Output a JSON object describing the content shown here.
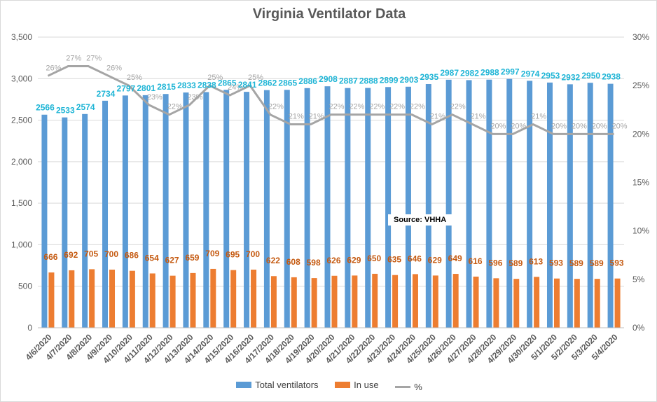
{
  "chart_data": {
    "type": "bar",
    "title": "Virginia Ventilator Data",
    "categories": [
      "4/6/2020",
      "4/7/2020",
      "4/8/2020",
      "4/9/2020",
      "4/10/2020",
      "4/11/2020",
      "4/12/2020",
      "4/13/2020",
      "4/14/2020",
      "4/15/2020",
      "4/16/2020",
      "4/17/2020",
      "4/18/2020",
      "4/19/2020",
      "4/20/2020",
      "4/21/2020",
      "4/22/2020",
      "4/23/2020",
      "4/24/2020",
      "4/25/2020",
      "4/26/2020",
      "4/27/2020",
      "4/28/2020",
      "4/29/2020",
      "4/30/2020",
      "5/1/2020",
      "5/2/2020",
      "5/3/2020",
      "5/4/2020"
    ],
    "series": [
      {
        "name": "Total ventilators",
        "kind": "bar",
        "axis": "left",
        "color": "#5b9bd5",
        "label_color": "#1fb5d6",
        "values": [
          2566,
          2533,
          2574,
          2734,
          2797,
          2801,
          2815,
          2833,
          2838,
          2865,
          2841,
          2862,
          2865,
          2886,
          2908,
          2887,
          2888,
          2899,
          2903,
          2935,
          2987,
          2982,
          2988,
          2997,
          2974,
          2953,
          2932,
          2950,
          2938
        ]
      },
      {
        "name": "In use",
        "kind": "bar",
        "axis": "left",
        "color": "#ed7d31",
        "label_color": "#c55a11",
        "values": [
          666,
          692,
          705,
          700,
          686,
          654,
          627,
          659,
          709,
          695,
          700,
          622,
          608,
          598,
          626,
          629,
          650,
          635,
          646,
          629,
          649,
          616,
          596,
          589,
          613,
          593,
          589,
          589,
          593
        ]
      },
      {
        "name": "%",
        "kind": "line",
        "axis": "right",
        "color": "#a5a5a5",
        "label_color": "#a5a5a5",
        "values": [
          26,
          27,
          27,
          26,
          25,
          23,
          22,
          23,
          25,
          24,
          25,
          22,
          21,
          21,
          22,
          22,
          22,
          22,
          22,
          21,
          22,
          21,
          20,
          20,
          21,
          20,
          20,
          20,
          20
        ],
        "labels": [
          "26%",
          "27%",
          "27%",
          "26%",
          "25%",
          "23%",
          "22%",
          "23%",
          "25%",
          "24%",
          "25%",
          "22%",
          "21%",
          "21%",
          "22%",
          "22%",
          "22%",
          "22%",
          "22%",
          "21%",
          "22%",
          "21%",
          "20%",
          "20%",
          "21%",
          "20%",
          "20%",
          "20%",
          "20%"
        ]
      }
    ],
    "y_left": {
      "range": [
        0,
        3500
      ],
      "ticks": [
        0,
        500,
        1000,
        1500,
        2000,
        2500,
        3000,
        3500
      ],
      "tick_labels": [
        "0",
        "500",
        "1,000",
        "1,500",
        "2,000",
        "2,500",
        "3,000",
        "3,500"
      ]
    },
    "y_right": {
      "range": [
        0,
        30
      ],
      "ticks": [
        0,
        5,
        10,
        15,
        20,
        25,
        30
      ],
      "tick_labels": [
        "0%",
        "5%",
        "10%",
        "15%",
        "20%",
        "25%",
        "30%"
      ]
    },
    "grid": true,
    "legend_position": "bottom",
    "annotation": "Source: VHHA"
  }
}
